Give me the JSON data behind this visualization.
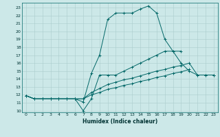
{
  "xlabel": "Humidex (Indice chaleur)",
  "bg_color": "#cce8e8",
  "line_color": "#006666",
  "grid_color": "#aacccc",
  "xlim": [
    -0.5,
    23.5
  ],
  "ylim": [
    9.8,
    23.6
  ],
  "xticks": [
    0,
    1,
    2,
    3,
    4,
    5,
    6,
    7,
    8,
    9,
    10,
    11,
    12,
    13,
    14,
    15,
    16,
    17,
    18,
    19,
    20,
    21,
    22,
    23
  ],
  "yticks": [
    10,
    11,
    12,
    13,
    14,
    15,
    16,
    17,
    18,
    19,
    20,
    21,
    22,
    23
  ],
  "lines": [
    {
      "x": [
        0,
        1,
        2,
        3,
        4,
        5,
        6,
        7,
        8,
        9,
        10,
        11,
        12,
        13,
        14,
        15,
        16,
        17,
        18,
        19
      ],
      "y": [
        11.9,
        11.5,
        11.5,
        11.5,
        11.5,
        11.5,
        11.5,
        11.1,
        14.7,
        17.0,
        21.5,
        22.3,
        22.3,
        22.3,
        22.8,
        23.2,
        22.3,
        19.0,
        17.5,
        17.5
      ]
    },
    {
      "x": [
        0,
        1,
        2,
        3,
        4,
        5,
        6,
        7,
        8,
        9,
        10,
        11,
        12,
        13,
        14,
        15,
        16,
        17,
        18,
        19,
        20,
        21,
        22,
        23
      ],
      "y": [
        11.9,
        11.5,
        11.5,
        11.5,
        11.5,
        11.5,
        11.5,
        10.0,
        11.5,
        14.5,
        14.5,
        14.5,
        15.0,
        15.5,
        16.0,
        16.5,
        17.0,
        17.5,
        17.5,
        16.0,
        15.0,
        14.5,
        14.5,
        14.5
      ]
    },
    {
      "x": [
        0,
        1,
        2,
        3,
        4,
        5,
        6,
        7,
        8,
        9,
        10,
        11,
        12,
        13,
        14,
        15,
        16,
        17,
        18,
        19,
        20,
        21,
        22,
        23
      ],
      "y": [
        11.9,
        11.5,
        11.5,
        11.5,
        11.5,
        11.5,
        11.5,
        11.5,
        12.3,
        12.8,
        13.3,
        13.6,
        13.9,
        14.1,
        14.4,
        14.7,
        15.0,
        15.2,
        15.5,
        15.7,
        16.0,
        14.5,
        14.5,
        14.5
      ]
    },
    {
      "x": [
        0,
        1,
        2,
        3,
        4,
        5,
        6,
        7,
        8,
        9,
        10,
        11,
        12,
        13,
        14,
        15,
        16,
        17,
        18,
        19,
        20
      ],
      "y": [
        11.9,
        11.5,
        11.5,
        11.5,
        11.5,
        11.5,
        11.5,
        11.5,
        12.0,
        12.3,
        12.7,
        12.9,
        13.2,
        13.4,
        13.7,
        13.9,
        14.2,
        14.4,
        14.7,
        14.9,
        15.2
      ]
    }
  ]
}
